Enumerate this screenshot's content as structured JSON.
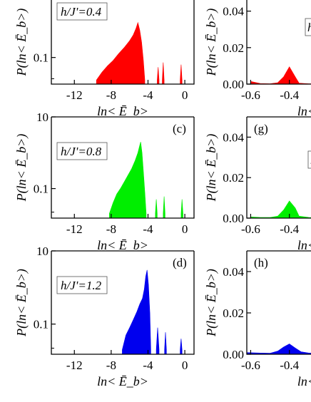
{
  "chart_data": [
    {
      "panel_label": "",
      "annotation": "h/J'=0.4",
      "type": "area",
      "x_range": [
        -14.5,
        1
      ],
      "ylog": true,
      "ytick_labels": [
        "0.1"
      ],
      "xtick_labels": [
        "-12",
        "-8",
        "-4",
        "0"
      ],
      "xtick_values": [
        -12,
        -8,
        -4,
        0
      ],
      "xlabel": "ln< Ē_b>",
      "ylabel": "P(ln< Ē_b>)",
      "color": "#ff0000",
      "series": [
        {
          "x": [
            -9.6,
            -9.0,
            -8.4,
            -7.8,
            -7.2,
            -6.6,
            -6.0,
            -5.6,
            -5.3,
            -5.1,
            -4.9,
            -4.7,
            -4.5,
            -4.35
          ],
          "y": [
            0.02,
            0.035,
            0.055,
            0.08,
            0.13,
            0.2,
            0.33,
            0.5,
            0.8,
            1.2,
            0.7,
            0.3,
            0.08,
            0.02
          ]
        },
        {
          "x": [
            -3.0,
            -2.9,
            -2.8
          ],
          "y": [
            0.02,
            0.05,
            0.02
          ]
        },
        {
          "x": [
            -2.45,
            -2.35,
            -2.25
          ],
          "y": [
            0.02,
            0.07,
            0.02
          ]
        },
        {
          "x": [
            -0.5,
            -0.4,
            -0.3
          ],
          "y": [
            0.02,
            0.06,
            0.02
          ]
        }
      ]
    },
    {
      "panel_label": "(c)",
      "annotation": "h/J'=0.8",
      "type": "area",
      "x_range": [
        -14.5,
        1
      ],
      "ylog": true,
      "ytick_labels": [
        "10",
        "0.1"
      ],
      "xtick_labels": [
        "-12",
        "-8",
        "-4",
        "0"
      ],
      "xtick_values": [
        -12,
        -8,
        -4,
        0
      ],
      "xlabel": "ln< Ē_b>",
      "ylabel": "P(ln< Ē_b>)",
      "color": "#00ee00",
      "series": [
        {
          "x": [
            -8.2,
            -7.8,
            -7.4,
            -7.0,
            -6.6,
            -6.2,
            -5.8,
            -5.4,
            -5.1,
            -4.9,
            -4.8,
            -4.65,
            -4.5,
            -4.35,
            -4.2
          ],
          "y": [
            0.02,
            0.04,
            0.07,
            0.1,
            0.15,
            0.23,
            0.35,
            0.6,
            1.0,
            1.6,
            2.0,
            1.0,
            0.3,
            0.08,
            0.02
          ]
        },
        {
          "x": [
            -3.2,
            -3.1,
            -3.0
          ],
          "y": [
            0.02,
            0.05,
            0.02
          ]
        },
        {
          "x": [
            -2.35,
            -2.25,
            -2.15
          ],
          "y": [
            0.02,
            0.06,
            0.02
          ]
        },
        {
          "x": [
            -0.4,
            -0.3,
            -0.2
          ],
          "y": [
            0.02,
            0.05,
            0.02
          ]
        }
      ]
    },
    {
      "panel_label": "(d)",
      "annotation": "h/J'=1.2",
      "type": "area",
      "x_range": [
        -14.5,
        1
      ],
      "ylog": true,
      "ytick_labels": [
        "10",
        "0.1"
      ],
      "xtick_labels": [
        "-12",
        "-8",
        "-4",
        "0"
      ],
      "xtick_values": [
        -12,
        -8,
        -4,
        0
      ],
      "xlabel": "ln< Ē_b>",
      "ylabel": "P(ln< Ē_b>)",
      "color": "#0000ee",
      "series": [
        {
          "x": [
            -6.8,
            -6.4,
            -6.0,
            -5.6,
            -5.2,
            -4.9,
            -4.6,
            -4.4,
            -4.25,
            -4.1,
            -3.95,
            -3.8,
            -3.7
          ],
          "y": [
            0.02,
            0.05,
            0.08,
            0.13,
            0.22,
            0.35,
            0.5,
            0.9,
            2.0,
            3.0,
            1.2,
            0.2,
            0.02
          ]
        },
        {
          "x": [
            -3.1,
            -2.95,
            -2.8
          ],
          "y": [
            0.02,
            0.08,
            0.02
          ]
        },
        {
          "x": [
            -2.2,
            -2.1,
            -2.0
          ],
          "y": [
            0.02,
            0.06,
            0.02
          ]
        },
        {
          "x": [
            -0.5,
            -0.4,
            -0.3
          ],
          "y": [
            0.02,
            0.04,
            0.02
          ]
        }
      ]
    },
    {
      "panel_label": "",
      "annotation": "h",
      "type": "area",
      "x_range": [
        -0.62,
        -0.2
      ],
      "ylog": false,
      "ytick_labels": [
        "0.04",
        "0.02",
        "0.00"
      ],
      "ytick_values": [
        0.04,
        0.02,
        0.0
      ],
      "xtick_labels": [
        "-0.6",
        "-0.4"
      ],
      "xtick_values": [
        -0.6,
        -0.4
      ],
      "xlabel": "ln<",
      "ylabel": "P(ln< Ē_b>)",
      "color": "#ff0000",
      "series": [
        {
          "x": [
            -0.6,
            -0.55,
            -0.5,
            -0.46,
            -0.43,
            -0.4,
            -0.37,
            -0.35,
            -0.3,
            -0.2
          ],
          "y": [
            0.0015,
            0.0003,
            0.0002,
            0.0008,
            0.004,
            0.0095,
            0.004,
            0.0005,
            0.0002,
            0.0001
          ]
        }
      ]
    },
    {
      "panel_label": "(g)",
      "annotation": "h",
      "type": "area",
      "x_range": [
        -0.62,
        -0.2
      ],
      "ylog": false,
      "ytick_labels": [
        "0.04",
        "0.02",
        "0.00"
      ],
      "ytick_values": [
        0.04,
        0.02,
        0.0
      ],
      "xtick_labels": [
        "-0.6",
        "-0.4"
      ],
      "xtick_values": [
        -0.6,
        -0.4
      ],
      "xlabel": "ln<",
      "ylabel": "P(ln< Ē_b>)",
      "color": "#00ee00",
      "series": [
        {
          "x": [
            -0.6,
            -0.55,
            -0.5,
            -0.46,
            -0.43,
            -0.4,
            -0.37,
            -0.35,
            -0.3,
            -0.2
          ],
          "y": [
            0.0006,
            0.0003,
            0.0003,
            0.001,
            0.004,
            0.0085,
            0.005,
            0.001,
            0.0003,
            0.0002
          ]
        }
      ]
    },
    {
      "panel_label": "(h)",
      "annotation": "",
      "type": "area",
      "x_range": [
        -0.62,
        -0.2
      ],
      "ylog": false,
      "ytick_labels": [
        "0.04",
        "0.02",
        "0.00"
      ],
      "ytick_values": [
        0.04,
        0.02,
        0.0
      ],
      "xtick_labels": [
        "-0.6",
        "-0.4"
      ],
      "xtick_values": [
        -0.6,
        -0.4
      ],
      "xlabel": "ln<",
      "ylabel": "P(ln< Ē_b>)",
      "color": "#0000ee",
      "series": [
        {
          "x": [
            -0.62,
            -0.55,
            -0.5,
            -0.46,
            -0.43,
            -0.4,
            -0.37,
            -0.34,
            -0.3,
            -0.2
          ],
          "y": [
            0.0008,
            0.0006,
            0.0005,
            0.0015,
            0.0035,
            0.005,
            0.003,
            0.0012,
            0.0006,
            0.0004
          ]
        }
      ]
    }
  ]
}
